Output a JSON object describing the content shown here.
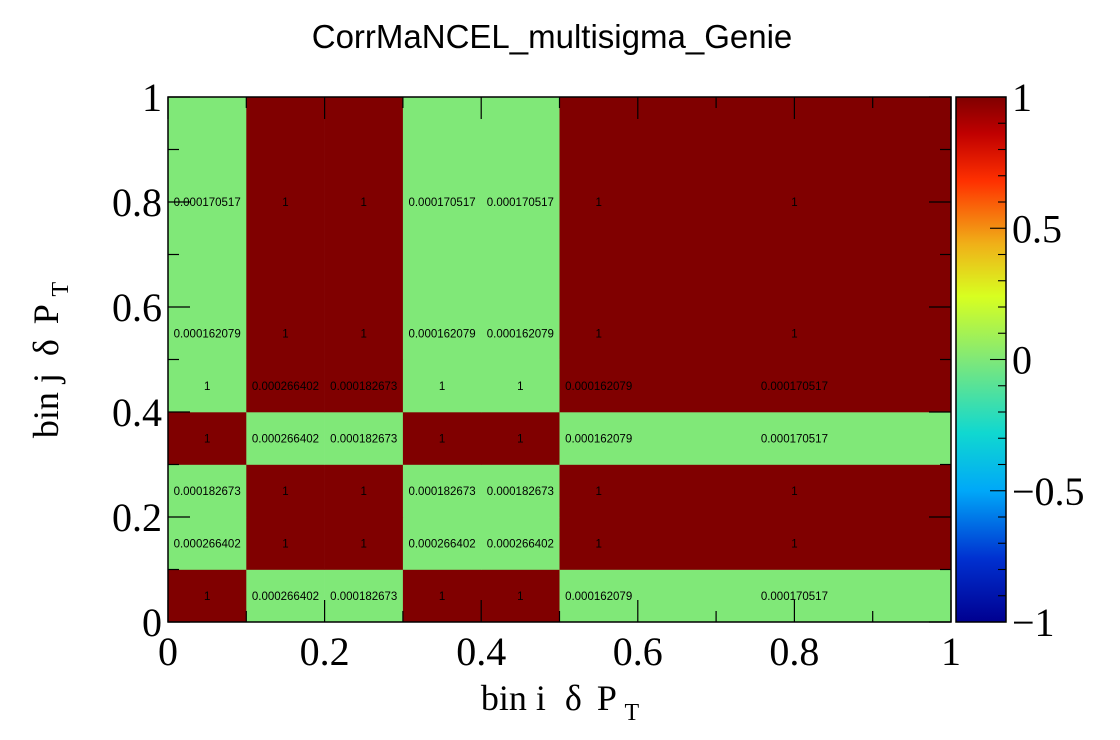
{
  "chart_data": {
    "type": "heatmap",
    "title": "CorrMaNCEL_multisigma_Genie",
    "xlabel": {
      "main": "bin i",
      "greek": "δ",
      "var": "P",
      "sub": "T"
    },
    "ylabel": {
      "main": "bin j",
      "greek": "δ",
      "var": "P",
      "sub": "T"
    },
    "x_edges": [
      0,
      0.1,
      0.2,
      0.3,
      0.4,
      0.5,
      1.0
    ],
    "y_edges": [
      0,
      0.1,
      0.2,
      0.3,
      0.4,
      0.5,
      1.0
    ],
    "x_ticks": [
      "0",
      "0.2",
      "0.4",
      "0.6",
      "0.8",
      "1"
    ],
    "y_ticks": [
      "0",
      "0.2",
      "0.4",
      "0.6",
      "0.8",
      "1"
    ],
    "xlim": [
      0,
      1
    ],
    "ylim": [
      0,
      1
    ],
    "zlim": [
      -1,
      1
    ],
    "colorbar_ticks": [
      "−1",
      "−0.5",
      "0",
      "0.5",
      "1"
    ],
    "colors": {
      "high": "#800000",
      "near_zero": "#80e878"
    },
    "rows": [
      {
        "y": 0.05,
        "values": [
          1,
          0.000266402,
          0.000182673,
          1,
          1,
          0.000162079,
          0.000170517
        ]
      },
      {
        "y": 0.15,
        "values": [
          0.000266402,
          1,
          1,
          0.000266402,
          0.000266402,
          1,
          1
        ]
      },
      {
        "y": 0.25,
        "values": [
          0.000182673,
          1,
          1,
          0.000182673,
          0.000182673,
          1,
          1
        ]
      },
      {
        "y": 0.35,
        "values": [
          1,
          0.000266402,
          0.000182673,
          1,
          1,
          0.000162079,
          0.000170517
        ]
      },
      {
        "y": 0.45,
        "values": [
          1,
          0.000266402,
          0.000182673,
          1,
          1,
          0.000162079,
          0.000170517
        ]
      },
      {
        "y": 0.55,
        "values": [
          0.000162079,
          1,
          1,
          0.000162079,
          0.000162079,
          1,
          1
        ]
      },
      {
        "y": 0.8,
        "values": [
          0.000170517,
          1,
          1,
          0.000170517,
          0.000170517,
          1,
          1
        ]
      }
    ],
    "label_x": [
      0.05,
      0.15,
      0.25,
      0.35,
      0.45,
      0.55,
      0.8
    ],
    "row_bins": [
      0,
      1,
      2,
      3,
      3,
      4,
      5
    ],
    "col_bins": [
      0,
      1,
      2,
      3,
      4,
      5,
      5
    ]
  }
}
